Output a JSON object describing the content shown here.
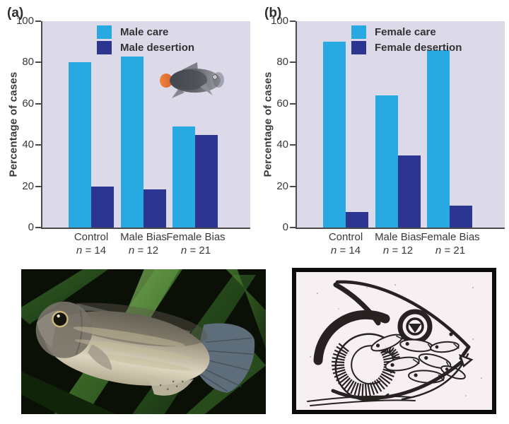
{
  "colors": {
    "care_bar": "#29a9e1",
    "desertion_bar": "#2c3590",
    "plot_background": "#dcdae9",
    "axis": "#4b4b4d",
    "text": "#3a3a3c"
  },
  "panels": [
    {
      "label": "(a)",
      "ylabel": "Percentage of cases",
      "yticks": [
        "100",
        "80",
        "60",
        "40",
        "20",
        "0"
      ],
      "legend": [
        {
          "label": "Male care"
        },
        {
          "label": "Male desertion"
        }
      ],
      "groups": [
        {
          "name": "Control",
          "n_prefix": "n",
          "n_value": "= 14"
        },
        {
          "name": "Male Bias",
          "n_prefix": "n",
          "n_value": "= 12"
        },
        {
          "name": "Female Bias",
          "n_prefix": "n",
          "n_value": "= 21"
        }
      ]
    },
    {
      "label": "(b)",
      "ylabel": "Percentage of cases",
      "yticks": [
        "100",
        "80",
        "60",
        "40",
        "20",
        "0"
      ],
      "legend": [
        {
          "label": "Female care"
        },
        {
          "label": "Female desertion"
        }
      ],
      "groups": [
        {
          "name": "Control",
          "n_prefix": "n",
          "n_value": "= 14"
        },
        {
          "name": "Male Bias",
          "n_prefix": "n",
          "n_value": "= 12"
        },
        {
          "name": "Female Bias",
          "n_prefix": "n",
          "n_value": "= 21"
        }
      ]
    }
  ],
  "chart_data": [
    {
      "type": "bar",
      "title": "(a)",
      "categories": [
        "Control (n = 14)",
        "Male Bias (n = 12)",
        "Female Bias (n = 21)"
      ],
      "series": [
        {
          "name": "Male care",
          "color": "#29a9e1",
          "values": [
            80,
            83,
            49
          ]
        },
        {
          "name": "Male desertion",
          "color": "#2c3590",
          "values": [
            20,
            18.5,
            45
          ]
        }
      ],
      "xlabel": "",
      "ylabel": "Percentage of cases",
      "ylim": [
        0,
        100
      ],
      "yticks": [
        0,
        20,
        40,
        60,
        80,
        100
      ],
      "grid": false,
      "legend_position": "upper-left-inside",
      "plot_background": "#dcdae9"
    },
    {
      "type": "bar",
      "title": "(b)",
      "categories": [
        "Control (n = 14)",
        "Male Bias (n = 12)",
        "Female Bias (n = 21)"
      ],
      "series": [
        {
          "name": "Female care",
          "color": "#29a9e1",
          "values": [
            90,
            64,
            86
          ]
        },
        {
          "name": "Female desertion",
          "color": "#2c3590",
          "values": [
            7.5,
            35,
            10.5
          ]
        }
      ],
      "xlabel": "",
      "ylabel": "Percentage of cases",
      "ylim": [
        0,
        100
      ],
      "yticks": [
        0,
        20,
        40,
        60,
        80,
        100
      ],
      "grid": false,
      "legend_position": "upper-left-inside",
      "plot_background": "#dcdae9"
    }
  ],
  "icons": {
    "chart_fish": "gray-wrasse-illustration",
    "photo": "cichlid-fish-photo",
    "drawing": "mouthbrooding-fish-drawing"
  }
}
